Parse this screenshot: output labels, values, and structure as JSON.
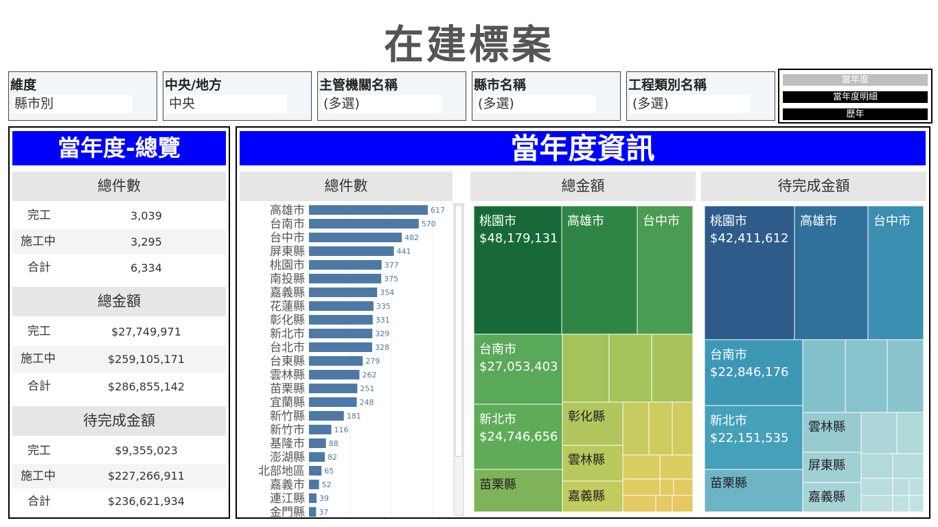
{
  "title": "在建標案",
  "filters": [
    {
      "label": "維度",
      "value": "縣市別"
    },
    {
      "label": "中央/地方",
      "value": "中央"
    },
    {
      "label": "主管機關名稱",
      "value": "(多選)"
    },
    {
      "label": "縣市名稱",
      "value": "(多選)"
    },
    {
      "label": "工程類別名稱",
      "value": "(多選)"
    }
  ],
  "view_toggle": [
    "當年度",
    "當年度明細",
    "歷年"
  ],
  "overview": {
    "header": "當年度-總覽",
    "sections": [
      {
        "title": "總件數",
        "rows": [
          {
            "label": "完工",
            "value": "3,039"
          },
          {
            "label": "施工中",
            "value": "3,295"
          },
          {
            "label": "合計",
            "value": "6,334"
          }
        ]
      },
      {
        "title": "總金額",
        "rows": [
          {
            "label": "完工",
            "value": "$27,749,971"
          },
          {
            "label": "施工中",
            "value": "$259,105,171"
          },
          {
            "label": "合計",
            "value": "$286,855,142"
          }
        ]
      },
      {
        "title": "待完成金額",
        "rows": [
          {
            "label": "完工",
            "value": "$9,355,023"
          },
          {
            "label": "施工中",
            "value": "$227,266,911"
          },
          {
            "label": "合計",
            "value": "$236,621,934"
          }
        ]
      }
    ]
  },
  "info_header": "當年度資訊",
  "chart_data": [
    {
      "type": "bar",
      "orientation": "horizontal",
      "title": "總件數",
      "categories": [
        "高雄市",
        "台南市",
        "台中市",
        "屏東縣",
        "桃園市",
        "南投縣",
        "嘉義縣",
        "花蓮縣",
        "彰化縣",
        "新北市",
        "台北市",
        "台東縣",
        "雲林縣",
        "苗栗縣",
        "宜蘭縣",
        "新竹縣",
        "新竹市",
        "基隆市",
        "澎湖縣",
        "北部地區",
        "嘉義市",
        "連江縣",
        "金門縣"
      ],
      "values": [
        617,
        570,
        482,
        441,
        377,
        375,
        354,
        335,
        331,
        329,
        328,
        279,
        262,
        251,
        248,
        181,
        116,
        88,
        82,
        65,
        52,
        39,
        37
      ],
      "bar_color": "#4e79a7"
    },
    {
      "type": "treemap",
      "title": "總金額",
      "items": [
        {
          "name": "桃園市",
          "value": "$48,179,131"
        },
        {
          "name": "高雄市"
        },
        {
          "name": "台中市"
        },
        {
          "name": "台南市",
          "value": "$27,053,403"
        },
        {
          "name": "新北市",
          "value": "$24,746,656"
        },
        {
          "name": "苗栗縣"
        },
        {
          "name": "彰化縣"
        },
        {
          "name": "雲林縣"
        },
        {
          "name": "嘉義縣"
        }
      ]
    },
    {
      "type": "treemap",
      "title": "待完成金額",
      "items": [
        {
          "name": "桃園市",
          "value": "$42,411,612"
        },
        {
          "name": "高雄市"
        },
        {
          "name": "台中市"
        },
        {
          "name": "台南市",
          "value": "$22,846,176"
        },
        {
          "name": "新北市",
          "value": "$22,151,535"
        },
        {
          "name": "苗栗縣"
        },
        {
          "name": "雲林縣"
        },
        {
          "name": "屏東縣"
        },
        {
          "name": "嘉義縣"
        }
      ]
    }
  ]
}
